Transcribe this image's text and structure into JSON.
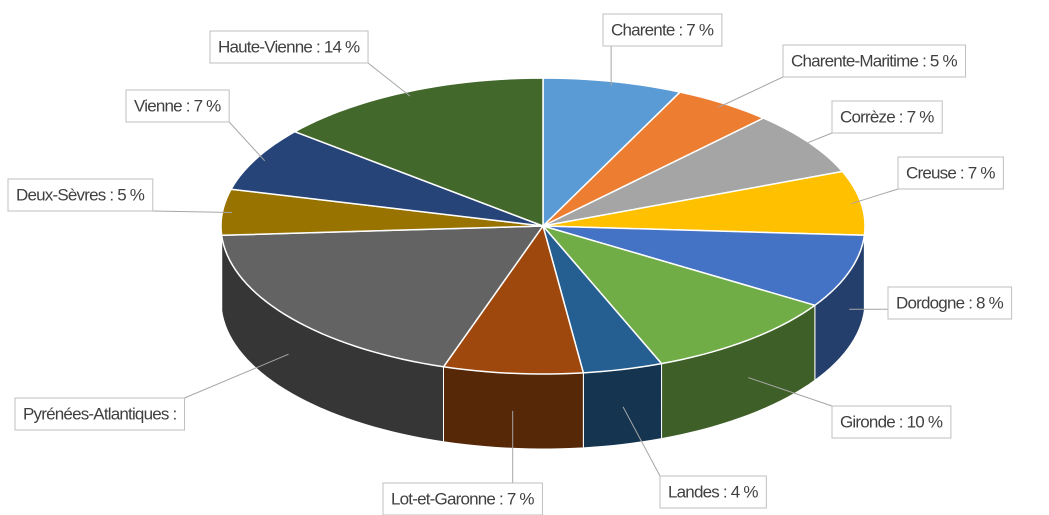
{
  "chart_data": {
    "type": "pie3d",
    "values": [
      7,
      5,
      7,
      7,
      8,
      10,
      4,
      7,
      19,
      5,
      7,
      14
    ],
    "value_labels": [
      "Charente : 7 %",
      "Charente-Maritime : 5 %",
      "Corrèze : 7 %",
      "Creuse : 7 %",
      "Dordogne : 8 %",
      "Gironde : 10 %",
      "Landes : 4 %",
      "Lot-et-Garonne : 7 %",
      "Pyrénées-Atlantiques :",
      "Deux-Sèvres : 5 %",
      "Vienne : 7 %",
      "Haute-Vienne : 14 %"
    ],
    "colors": [
      "#5b9bd5",
      "#ed7d31",
      "#a5a5a5",
      "#ffc000",
      "#4472c4",
      "#70ad47",
      "#255e91",
      "#9e480e",
      "#636363",
      "#997300",
      "#264478",
      "#43682b"
    ]
  }
}
